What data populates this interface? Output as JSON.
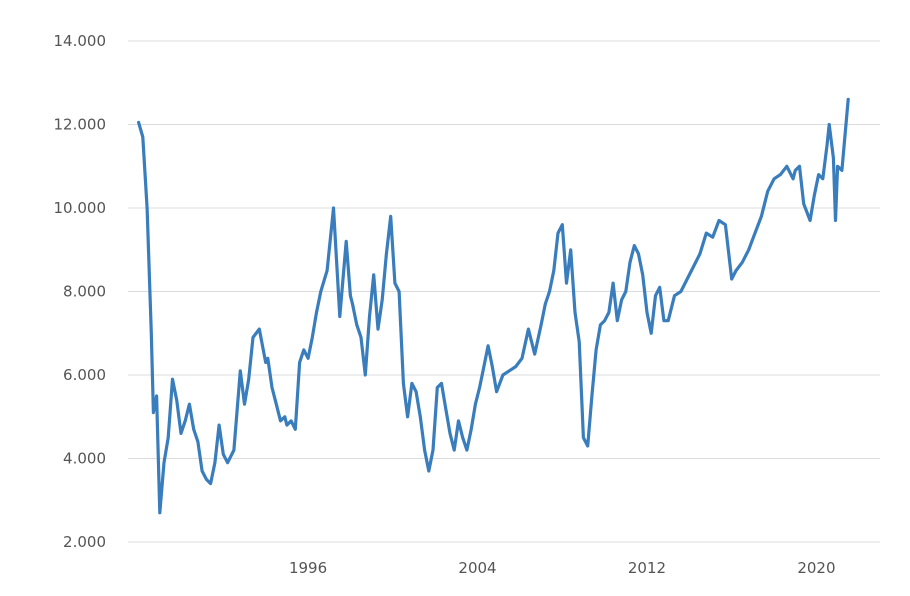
{
  "chart_data": {
    "type": "line",
    "title": "",
    "xlabel": "",
    "ylabel": "",
    "legend": "none",
    "grid": {
      "horizontal": true,
      "vertical": false
    },
    "ylim": [
      2000,
      14000
    ],
    "xlim": [
      1987.5,
      2023.0
    ],
    "y_ticks": [
      2000,
      4000,
      6000,
      8000,
      10000,
      12000,
      14000
    ],
    "y_tick_labels": [
      "2.000",
      "4.000",
      "6.000",
      "8.000",
      "10.000",
      "12.000",
      "14.000"
    ],
    "x_ticks": [
      1996,
      2004,
      2012,
      2020
    ],
    "x_tick_labels": [
      "1996",
      "2004",
      "2012",
      "2020"
    ],
    "colors": {
      "series": "#3a7dbd",
      "grid": "#dcdcdc",
      "tick_text": "#555555"
    },
    "series": [
      {
        "color": "#3a7dbd",
        "x": [
          1988.0,
          1988.2,
          1988.4,
          1988.6,
          1988.7,
          1988.85,
          1989.0,
          1989.2,
          1989.4,
          1989.6,
          1989.8,
          1990.0,
          1990.2,
          1990.4,
          1990.6,
          1990.8,
          1991.0,
          1991.2,
          1991.4,
          1991.6,
          1991.8,
          1992.0,
          1992.2,
          1992.5,
          1992.8,
          1993.0,
          1993.2,
          1993.4,
          1993.7,
          1994.0,
          1994.1,
          1994.3,
          1994.5,
          1994.7,
          1994.9,
          1995.0,
          1995.2,
          1995.4,
          1995.6,
          1995.8,
          1996.0,
          1996.2,
          1996.4,
          1996.6,
          1996.9,
          1997.2,
          1997.5,
          1997.8,
          1998.0,
          1998.1,
          1998.3,
          1998.5,
          1998.7,
          1998.9,
          1999.1,
          1999.3,
          1999.5,
          1999.7,
          1999.9,
          2000.1,
          2000.3,
          2000.5,
          2000.7,
          2000.9,
          2001.1,
          2001.3,
          2001.5,
          2001.7,
          2001.9,
          2002.1,
          2002.3,
          2002.5,
          2002.7,
          2002.9,
          2003.1,
          2003.3,
          2003.5,
          2003.7,
          2003.9,
          2004.1,
          2004.3,
          2004.5,
          2004.7,
          2004.9,
          2005.2,
          2005.5,
          2005.8,
          2006.1,
          2006.4,
          2006.7,
          2007.0,
          2007.2,
          2007.4,
          2007.6,
          2007.8,
          2008.0,
          2008.2,
          2008.4,
          2008.6,
          2008.8,
          2009.0,
          2009.2,
          2009.4,
          2009.6,
          2009.8,
          2010.0,
          2010.2,
          2010.4,
          2010.6,
          2010.8,
          2011.0,
          2011.2,
          2011.4,
          2011.6,
          2011.8,
          2012.0,
          2012.2,
          2012.4,
          2012.6,
          2012.8,
          2013.0,
          2013.3,
          2013.6,
          2013.9,
          2014.2,
          2014.5,
          2014.8,
          2015.1,
          2015.4,
          2015.7,
          2016.0,
          2016.2,
          2016.5,
          2016.8,
          2017.1,
          2017.4,
          2017.7,
          2018.0,
          2018.3,
          2018.6,
          2018.9,
          2019.0,
          2019.2,
          2019.4,
          2019.7,
          2019.9,
          2020.1,
          2020.3,
          2020.5,
          2020.6,
          2020.8,
          2020.9,
          2021.0,
          2021.2,
          2021.5
        ],
        "values": [
          12050,
          11700,
          10000,
          7000,
          5100,
          5500,
          2700,
          3900,
          4500,
          5900,
          5400,
          4600,
          4900,
          5300,
          4700,
          4400,
          3700,
          3500,
          3400,
          3900,
          4800,
          4100,
          3900,
          4200,
          6100,
          5300,
          5900,
          6900,
          7100,
          6300,
          6400,
          5700,
          5300,
          4900,
          5000,
          4800,
          4900,
          4700,
          6300,
          6600,
          6400,
          6900,
          7500,
          8000,
          8500,
          10000,
          7400,
          9200,
          7900,
          7700,
          7200,
          6900,
          6000,
          7400,
          8400,
          7100,
          7800,
          8900,
          9800,
          8200,
          8000,
          5800,
          5000,
          5800,
          5600,
          5000,
          4200,
          3700,
          4200,
          5700,
          5800,
          5200,
          4600,
          4200,
          4900,
          4500,
          4200,
          4700,
          5300,
          5700,
          6200,
          6700,
          6200,
          5600,
          6000,
          6100,
          6200,
          6400,
          7100,
          6500,
          7200,
          7700,
          8000,
          8500,
          9400,
          9600,
          8200,
          9000,
          7500,
          6800,
          4500,
          4300,
          5500,
          6600,
          7200,
          7300,
          7500,
          8200,
          7300,
          7800,
          8000,
          8700,
          9100,
          8900,
          8400,
          7500,
          7000,
          7900,
          8100,
          7300,
          7300,
          7900,
          8000,
          8300,
          8600,
          8900,
          9400,
          9300,
          9700,
          9600,
          8300,
          8500,
          8700,
          9000,
          9400,
          9800,
          10400,
          10700,
          10800,
          11000,
          10700,
          10900,
          11000,
          10100,
          9700,
          10300,
          10800,
          10700,
          11500,
          12000,
          11200,
          9700,
          11000,
          10900,
          12600
        ]
      }
    ]
  }
}
